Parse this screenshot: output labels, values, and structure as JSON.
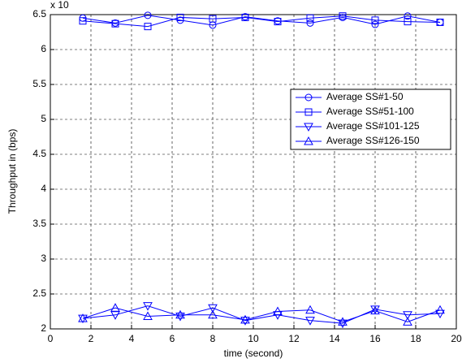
{
  "chart_data": {
    "type": "line",
    "multiplier_label": "x 10",
    "x_label": "time (second)",
    "y_label": "Throughput in (bps)",
    "x": [
      1.6,
      3.2,
      4.8,
      6.4,
      8.0,
      9.6,
      11.2,
      12.8,
      14.4,
      16.0,
      17.6,
      19.2
    ],
    "series": [
      {
        "name": "Average SS#1-50",
        "color": "#0000ff",
        "marker": "circle",
        "values": [
          6.45,
          6.38,
          6.49,
          6.42,
          6.35,
          6.47,
          6.41,
          6.38,
          6.46,
          6.36,
          6.48,
          6.39
        ]
      },
      {
        "name": "Average SS#51-100",
        "color": "#0000ff",
        "marker": "square",
        "values": [
          6.41,
          6.37,
          6.33,
          6.46,
          6.44,
          6.46,
          6.4,
          6.45,
          6.48,
          6.42,
          6.4,
          6.39
        ]
      },
      {
        "name": "Average SS#101-125",
        "color": "#0000ff",
        "marker": "triangle-down",
        "values": [
          2.15,
          2.2,
          2.33,
          2.18,
          2.3,
          2.12,
          2.2,
          2.12,
          2.08,
          2.28,
          2.2,
          2.22
        ]
      },
      {
        "name": "Average SS#126-150",
        "color": "#0000ff",
        "marker": "triangle-up",
        "values": [
          2.15,
          2.3,
          2.18,
          2.2,
          2.2,
          2.13,
          2.25,
          2.27,
          2.1,
          2.26,
          2.1,
          2.27
        ]
      }
    ],
    "xlim": [
      0,
      20
    ],
    "xticks": [
      0,
      2,
      4,
      6,
      8,
      10,
      12,
      14,
      16,
      18,
      20
    ],
    "ylim": [
      2,
      6.5
    ],
    "yticks": [
      2,
      2.5,
      3,
      3.5,
      4,
      4.5,
      5,
      5.5,
      6,
      6.5
    ],
    "grid": true,
    "legend": "right"
  }
}
